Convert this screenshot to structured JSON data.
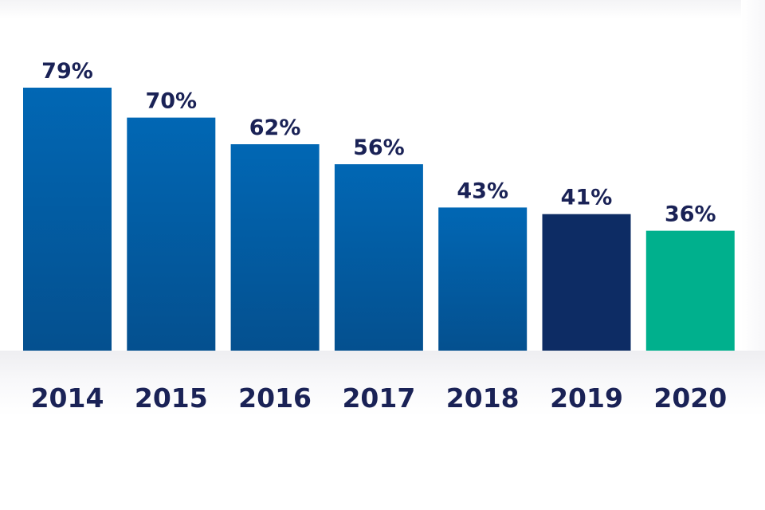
{
  "chart_data": {
    "type": "bar",
    "categories": [
      "2014",
      "2015",
      "2016",
      "2017",
      "2018",
      "2019",
      "2020"
    ],
    "values": [
      79,
      70,
      62,
      56,
      43,
      41,
      36
    ],
    "value_labels": [
      "79%",
      "70%",
      "62%",
      "56%",
      "43%",
      "41%",
      "36%"
    ],
    "unit": "%",
    "ylim": [
      0,
      79
    ],
    "grid": false,
    "legend": "none",
    "colors": {
      "default_top": "#0167b4",
      "default_bottom": "#04508f",
      "highlight_2019": "#0d2c64",
      "highlight_2020": "#00b08d",
      "label_text": "#1a2256"
    },
    "bar_colors": [
      "default",
      "default",
      "default",
      "default",
      "default",
      "highlight_2019",
      "highlight_2020"
    ]
  }
}
